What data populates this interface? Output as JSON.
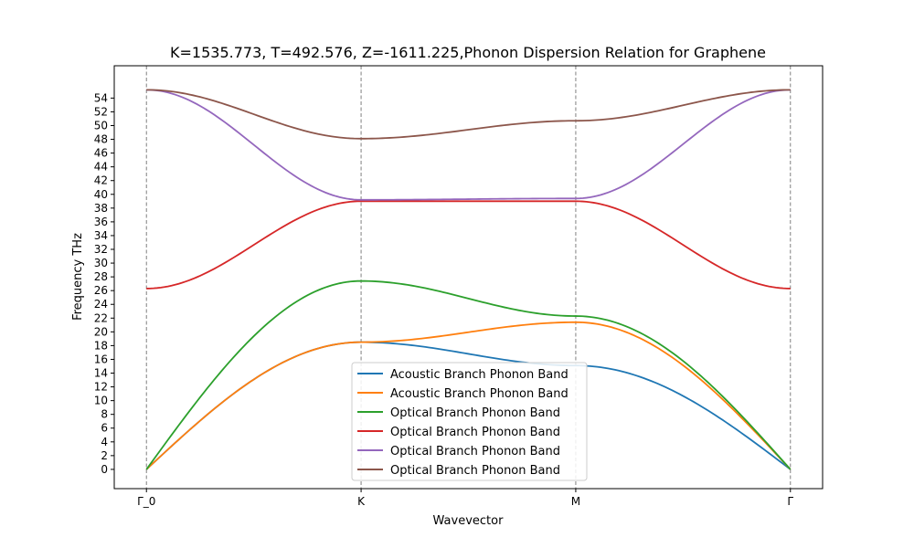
{
  "chart_data": {
    "type": "line",
    "title": "K=1535.773, T=492.576, Z=-1611.225,Phonon Dispersion Relation for Graphene",
    "xlabel": "Wavevector",
    "ylabel": "Frequency THz",
    "x_ticks": [
      {
        "pos": 0,
        "label": "Γ_0"
      },
      {
        "pos": 1,
        "label": "K"
      },
      {
        "pos": 2,
        "label": "M"
      },
      {
        "pos": 3,
        "label": "Γ"
      }
    ],
    "xlim": [
      -0.15,
      3.15
    ],
    "ylim": [
      -2.8,
      58.7
    ],
    "y_ticks": [
      0,
      2,
      4,
      6,
      8,
      10,
      12,
      14,
      16,
      18,
      20,
      22,
      24,
      26,
      28,
      30,
      32,
      34,
      36,
      38,
      40,
      42,
      44,
      46,
      48,
      50,
      52,
      54
    ],
    "vlines": [
      0,
      1,
      2,
      3
    ],
    "legend_position": "lower-center",
    "series": [
      {
        "name": "Acoustic Branch Phonon Band",
        "color": "#1f77b4",
        "nodes": [
          0,
          18.5,
          15.1,
          0
        ]
      },
      {
        "name": "Acoustic Branch Phonon Band",
        "color": "#ff7f0e",
        "nodes": [
          0,
          18.5,
          21.4,
          0
        ]
      },
      {
        "name": "Optical Branch Phonon Band",
        "color": "#2ca02c",
        "nodes": [
          0,
          27.4,
          22.3,
          0
        ]
      },
      {
        "name": "Optical Branch Phonon Band",
        "color": "#d62728",
        "nodes": [
          26.3,
          39.0,
          39.0,
          26.3
        ]
      },
      {
        "name": "Optical Branch Phonon Band",
        "color": "#9467bd",
        "nodes": [
          55.2,
          39.2,
          39.4,
          55.2
        ]
      },
      {
        "name": "Optical Branch Phonon Band",
        "color": "#8c564b",
        "nodes": [
          55.2,
          48.1,
          50.7,
          55.2
        ]
      }
    ]
  }
}
